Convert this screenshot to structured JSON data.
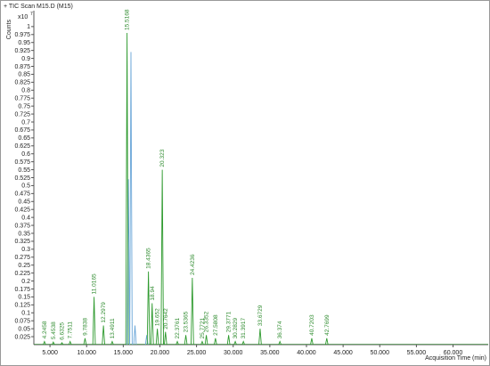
{
  "chart_data": {
    "type": "chromatogram",
    "title": "+ TIC Scan M15.D (M15)",
    "y_label": "Counts",
    "y_scale_label": "x10",
    "y_scale_exp": "7",
    "x_label": "Acquisition Time (min)",
    "xlim": [
      2.8,
      64.8
    ],
    "ylim": [
      0,
      1.05
    ],
    "xticks": [
      {
        "value": 5,
        "label": "5.000"
      },
      {
        "value": 10,
        "label": "10.000"
      },
      {
        "value": 15,
        "label": "15.000"
      },
      {
        "value": 20,
        "label": "20.000"
      },
      {
        "value": 25,
        "label": "25.000"
      },
      {
        "value": 30,
        "label": "30.000"
      },
      {
        "value": 35,
        "label": "35.000"
      },
      {
        "value": 40,
        "label": "40.000"
      },
      {
        "value": 45,
        "label": "45.000"
      },
      {
        "value": 50,
        "label": "50.000"
      },
      {
        "value": 55,
        "label": "55.000"
      },
      {
        "value": 60,
        "label": "60.000"
      }
    ],
    "yticks": [
      0.025,
      0.05,
      0.075,
      0.1,
      0.125,
      0.15,
      0.175,
      0.2,
      0.225,
      0.25,
      0.275,
      0.3,
      0.325,
      0.35,
      0.375,
      0.4,
      0.425,
      0.45,
      0.475,
      0.5,
      0.525,
      0.55,
      0.575,
      0.6,
      0.625,
      0.65,
      0.675,
      0.7,
      0.725,
      0.75,
      0.775,
      0.8,
      0.825,
      0.85,
      0.875,
      0.9,
      0.925,
      0.95,
      0.975,
      1
    ],
    "series": [
      {
        "color": "#2e9a2e",
        "x": [
          4.2458,
          5.4538,
          6.6325,
          7.7511,
          9.7838,
          11.0165,
          12.2979,
          13.4911,
          15.5168,
          18.4365,
          18.94,
          19.652,
          20.323,
          20.7642,
          22.3761,
          23.5365,
          24.4236,
          25.7721,
          26.3352,
          27.5808,
          29.3771,
          30.2829,
          31.3917,
          33.6729,
          36.374,
          40.7203,
          42.7699
        ],
        "values": [
          0.01,
          0.008,
          0.006,
          0.01,
          0.02,
          0.15,
          0.06,
          0.01,
          0.98,
          0.23,
          0.13,
          0.05,
          0.55,
          0.04,
          0.01,
          0.03,
          0.21,
          0.01,
          0.03,
          0.02,
          0.03,
          0.01,
          0.01,
          0.05,
          0.01,
          0.02,
          0.02
        ]
      },
      {
        "color": "#6aa6d8",
        "x": [
          15.7,
          16.05,
          16.6,
          18.2
        ],
        "values": [
          0.52,
          0.92,
          0.06,
          0.03
        ]
      }
    ]
  }
}
